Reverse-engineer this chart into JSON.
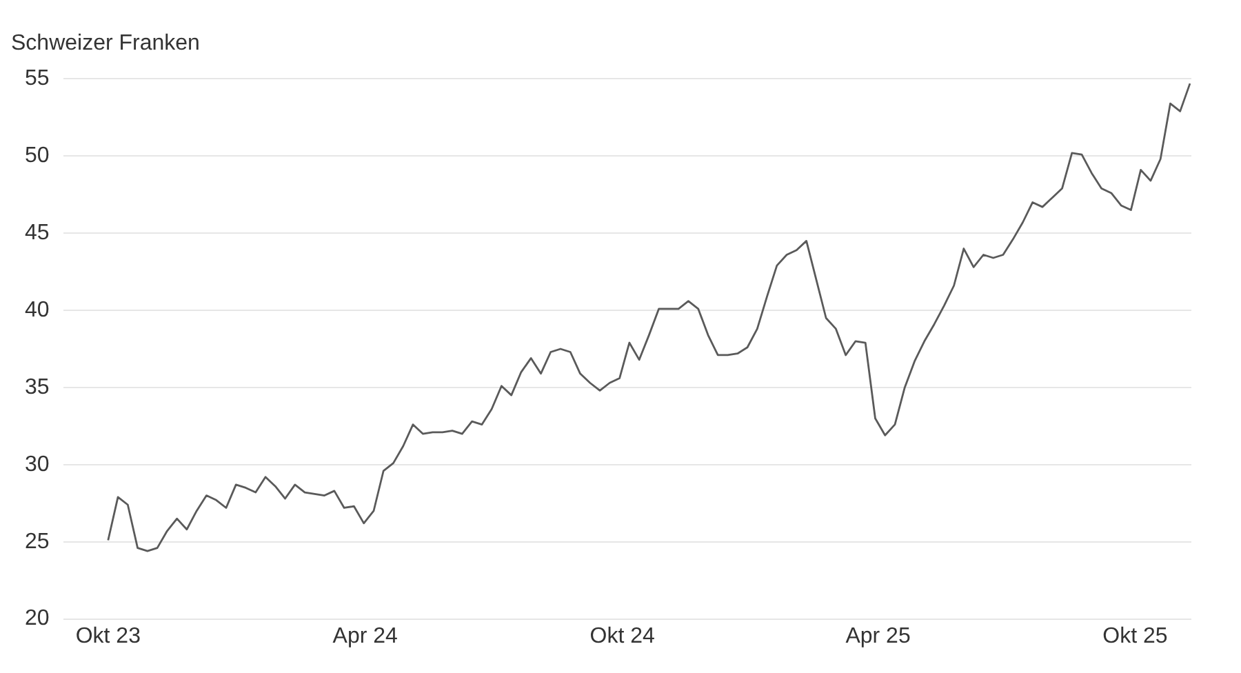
{
  "chart_data": {
    "type": "line",
    "ylabel": "Schweizer Franken",
    "x": [
      "2023-10-01",
      "2023-10-08",
      "2023-10-15",
      "2023-10-22",
      "2023-10-29",
      "2023-11-05",
      "2023-11-12",
      "2023-11-19",
      "2023-11-26",
      "2023-12-03",
      "2023-12-10",
      "2023-12-17",
      "2023-12-24",
      "2023-12-31",
      "2024-01-07",
      "2024-01-14",
      "2024-01-21",
      "2024-01-28",
      "2024-02-04",
      "2024-02-11",
      "2024-02-18",
      "2024-02-25",
      "2024-03-03",
      "2024-03-10",
      "2024-03-17",
      "2024-03-24",
      "2024-03-31",
      "2024-04-07",
      "2024-04-14",
      "2024-04-21",
      "2024-04-28",
      "2024-05-05",
      "2024-05-12",
      "2024-05-19",
      "2024-05-26",
      "2024-06-02",
      "2024-06-09",
      "2024-06-16",
      "2024-06-23",
      "2024-06-30",
      "2024-07-07",
      "2024-07-14",
      "2024-07-21",
      "2024-07-28",
      "2024-08-04",
      "2024-08-11",
      "2024-08-18",
      "2024-08-25",
      "2024-09-01",
      "2024-09-08",
      "2024-09-15",
      "2024-09-22",
      "2024-09-29",
      "2024-10-06",
      "2024-10-13",
      "2024-10-20",
      "2024-10-27",
      "2024-11-03",
      "2024-11-10",
      "2024-11-17",
      "2024-11-24",
      "2024-12-01",
      "2024-12-08",
      "2024-12-15",
      "2024-12-22",
      "2024-12-29",
      "2025-01-05",
      "2025-01-12",
      "2025-01-19",
      "2025-01-26",
      "2025-02-02",
      "2025-02-09",
      "2025-02-16",
      "2025-02-23",
      "2025-03-02",
      "2025-03-09",
      "2025-03-16",
      "2025-03-23",
      "2025-03-30",
      "2025-04-06",
      "2025-04-13",
      "2025-04-20",
      "2025-04-27",
      "2025-05-04",
      "2025-05-11",
      "2025-05-18",
      "2025-05-25",
      "2025-06-01",
      "2025-06-08",
      "2025-06-15",
      "2025-06-22",
      "2025-06-29",
      "2025-07-06",
      "2025-07-13",
      "2025-07-20",
      "2025-07-27",
      "2025-08-03",
      "2025-08-10",
      "2025-08-17",
      "2025-08-24",
      "2025-08-31",
      "2025-09-07",
      "2025-09-14",
      "2025-09-21",
      "2025-09-28",
      "2025-10-05",
      "2025-10-12",
      "2025-10-19",
      "2025-10-26",
      "2025-11-02",
      "2025-11-09"
    ],
    "series": [
      {
        "color": "#5a5a5a",
        "values": [
          25.1,
          27.9,
          27.4,
          24.6,
          24.4,
          24.6,
          25.7,
          26.5,
          25.8,
          27.0,
          28.0,
          27.7,
          27.2,
          28.7,
          28.5,
          28.2,
          29.2,
          28.6,
          27.8,
          28.7,
          28.2,
          28.1,
          28.0,
          28.3,
          27.2,
          27.3,
          26.2,
          27.0,
          29.6,
          30.1,
          31.2,
          32.6,
          32.0,
          32.1,
          32.1,
          32.2,
          32.0,
          32.8,
          32.6,
          33.6,
          35.1,
          34.5,
          36.0,
          36.9,
          35.9,
          37.3,
          37.5,
          37.3,
          35.9,
          35.3,
          34.8,
          35.3,
          35.6,
          37.9,
          36.8,
          38.4,
          40.1,
          40.1,
          40.1,
          40.6,
          40.1,
          38.4,
          37.1,
          37.1,
          37.2,
          37.6,
          38.8,
          40.9,
          42.9,
          43.6,
          43.9,
          44.5,
          42.0,
          39.5,
          38.8,
          37.1,
          38.0,
          37.9,
          33.0,
          31.9,
          32.6,
          35.0,
          36.7,
          38.0,
          39.1,
          40.3,
          41.6,
          44.0,
          42.8,
          43.6,
          43.4,
          43.6,
          44.6,
          45.7,
          47.0,
          46.7,
          47.3,
          47.9,
          50.2,
          50.1,
          48.9,
          47.9,
          47.6,
          46.8,
          46.5,
          49.1,
          48.4,
          49.8,
          53.4,
          52.9,
          54.7
        ]
      }
    ],
    "xlim": [
      "2023-08-30",
      "2025-11-10"
    ],
    "xticks": [
      {
        "value": "2023-10-01",
        "label": "Okt 23"
      },
      {
        "value": "2024-04-01",
        "label": "Apr 24"
      },
      {
        "value": "2024-10-01",
        "label": "Okt 24"
      },
      {
        "value": "2025-04-01",
        "label": "Apr 25"
      },
      {
        "value": "2025-10-01",
        "label": "Okt 25"
      }
    ],
    "ylim": [
      20,
      55
    ],
    "yticks": [
      20,
      25,
      30,
      35,
      40,
      45,
      50,
      55
    ],
    "grid": "y",
    "marker": "none",
    "line_style": "solid",
    "legend": false
  }
}
